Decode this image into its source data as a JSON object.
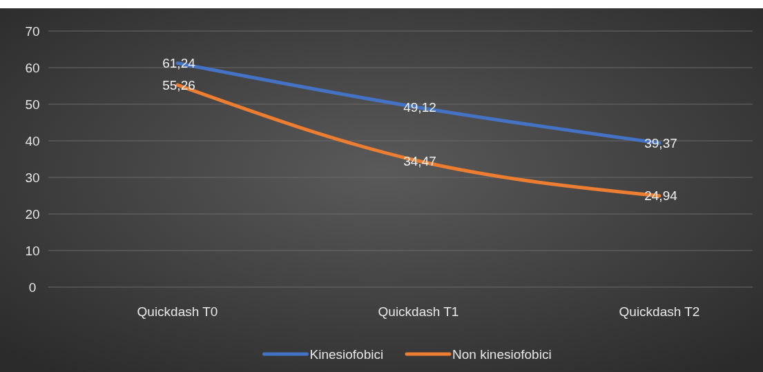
{
  "chart_data": {
    "type": "line",
    "categories": [
      "Quickdash T0",
      "Quickdash T1",
      "Quickdash T2"
    ],
    "series": [
      {
        "name": "Kinesiofobici",
        "color": "#4472c4",
        "values": [
          61.24,
          49.12,
          39.37
        ],
        "value_labels": [
          "61,24",
          "49,12",
          "39,37"
        ]
      },
      {
        "name": "Non kinesiofobici",
        "color": "#ed7d31",
        "values": [
          55.26,
          34.47,
          24.94
        ],
        "value_labels": [
          "55,26",
          "34,47",
          "24,94"
        ]
      }
    ],
    "ylim": [
      0,
      70
    ],
    "yticks": [
      0,
      10,
      20,
      30,
      40,
      50,
      60,
      70
    ],
    "grid": "y",
    "legend": "bottom",
    "marker": "none",
    "line_style": "solid"
  }
}
